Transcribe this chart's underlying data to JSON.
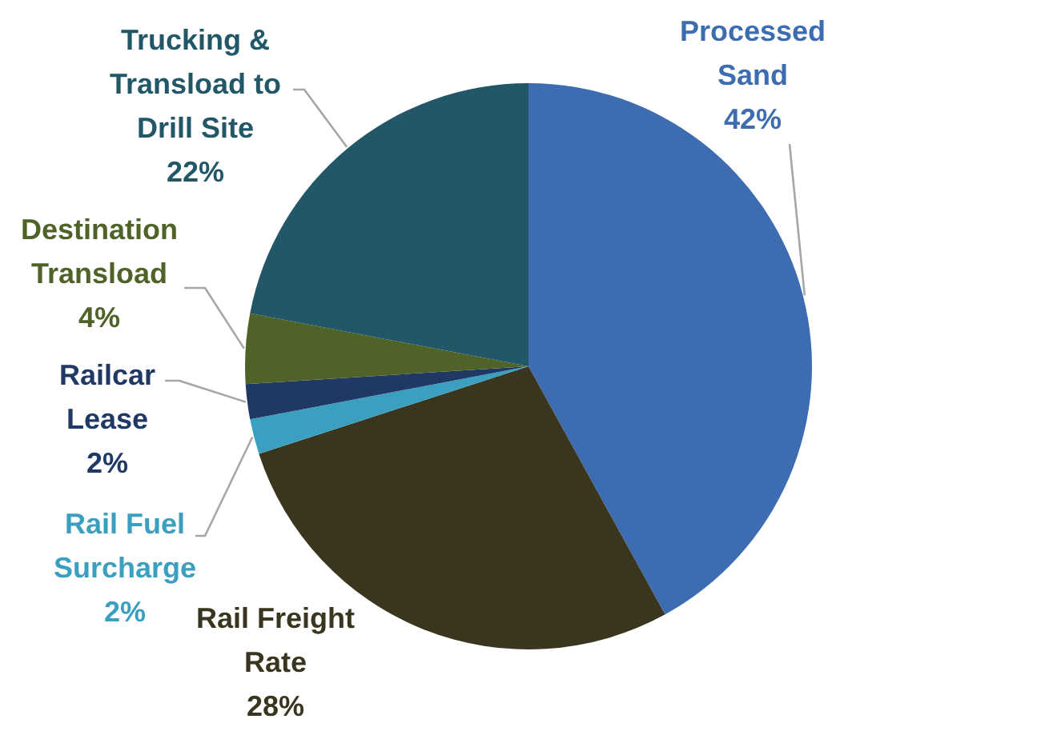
{
  "chart_data": {
    "type": "pie",
    "categories": [
      "Processed Sand",
      "Rail Freight Rate",
      "Rail Fuel Surcharge",
      "Railcar Lease",
      "Destination Transload",
      "Trucking & Transload to Drill Site"
    ],
    "values": [
      42,
      28,
      2,
      2,
      4,
      22
    ],
    "value_labels": [
      "42%",
      "28%",
      "2%",
      "2%",
      "4%",
      "22%"
    ],
    "colors": [
      "#3d6cb0",
      "#39351f",
      "#3ba0c0",
      "#1f3864",
      "#4f6228",
      "#215766"
    ]
  }
}
